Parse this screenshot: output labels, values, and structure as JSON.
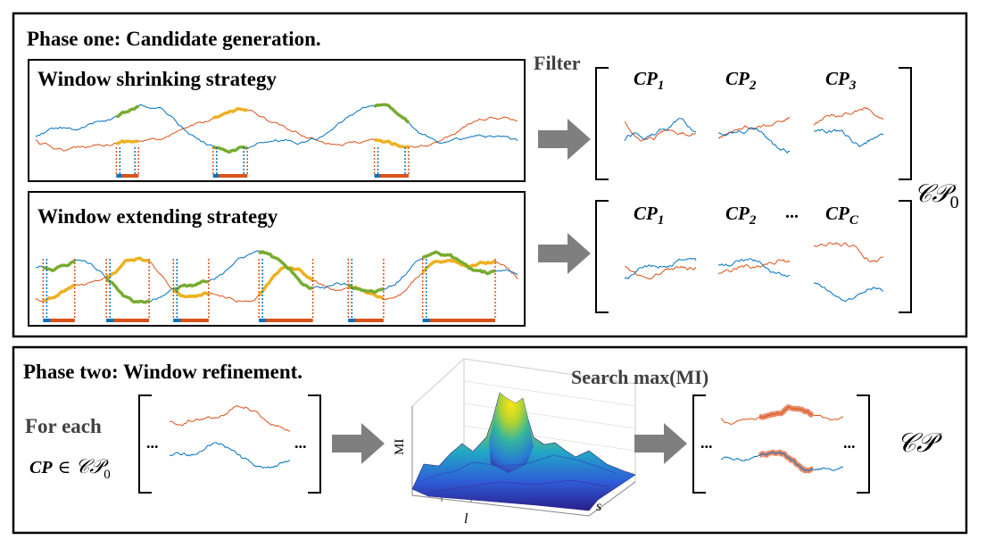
{
  "phase_one": {
    "title": "Phase one: Candidate generation.",
    "filter_label": "Filter",
    "shrink_title": "Window shrinking strategy",
    "extend_title": "Window extending strategy",
    "cp_symbol": "CP",
    "top_subscripts": [
      "1",
      "2",
      "3"
    ],
    "bottom_subscripts": [
      "1",
      "2",
      "C"
    ],
    "ellipsis": "...",
    "set_symbol": "𝒞𝒫",
    "set_subscript": "0"
  },
  "phase_two": {
    "title": "Phase two: Window refinement.",
    "for_each": "For each",
    "cp_in_prefix": "CP",
    "element_of": "∈",
    "set_symbol": "𝒞𝒫",
    "set_subscript": "0",
    "search_label": "Search max(MI)",
    "axis_mi": "MI",
    "axis_l": "l",
    "axis_s": "s",
    "ellipsis": "...",
    "result_symbol": "𝒞𝒫"
  },
  "colors": {
    "orange": "#d95319",
    "blue": "#0072bd",
    "green": "#77ac30",
    "yellow": "#edb120",
    "arrow": "#7f7f7f",
    "dark_text": "#404040"
  }
}
